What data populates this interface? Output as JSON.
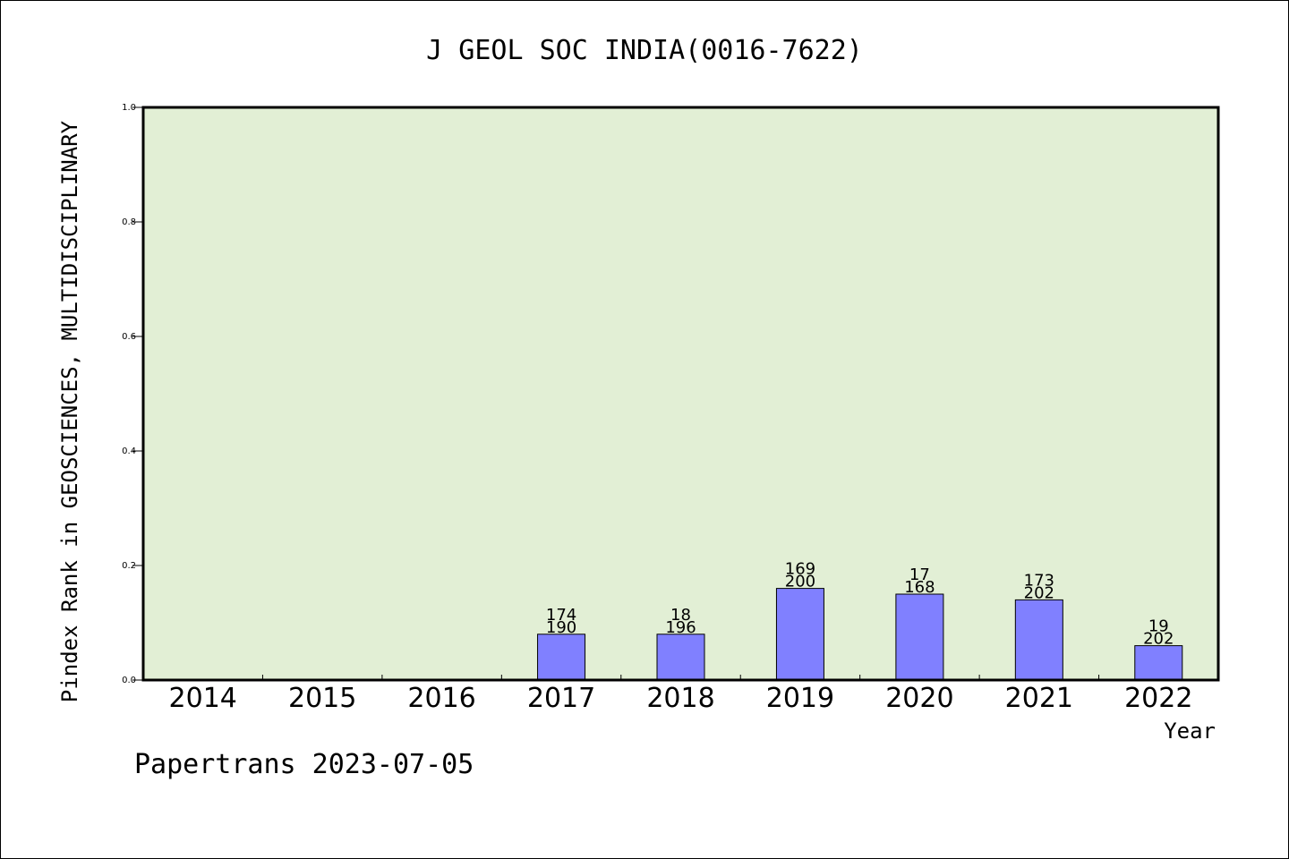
{
  "chart_data": {
    "type": "bar",
    "title": "J GEOL SOC INDIA(0016-7622)",
    "xlabel": "Year",
    "ylabel": "Pindex Rank in GEOSCIENCES, MULTIDISCIPLINARY",
    "credit": "Papertrans 2023-07-05",
    "ylim": [
      0,
      1.0
    ],
    "yticks": [
      "0.0",
      "0.2",
      "0.4",
      "0.6",
      "0.8",
      "1.0"
    ],
    "categories": [
      "2014",
      "2015",
      "2016",
      "2017",
      "2018",
      "2019",
      "2020",
      "2021",
      "2022"
    ],
    "values": [
      null,
      null,
      null,
      0.08,
      0.08,
      0.16,
      0.15,
      0.14,
      0.06
    ],
    "labels_top": [
      "",
      "",
      "",
      "174",
      "18",
      "169",
      "17",
      "173",
      "19"
    ],
    "labels_bottom": [
      "",
      "",
      "",
      "190",
      "196",
      "200",
      "168",
      "202",
      "202"
    ],
    "grid": false,
    "colors": {
      "plot_background": "#e2efd5",
      "bar_fill": "#8080ff",
      "bar_stroke": "#000000"
    }
  }
}
